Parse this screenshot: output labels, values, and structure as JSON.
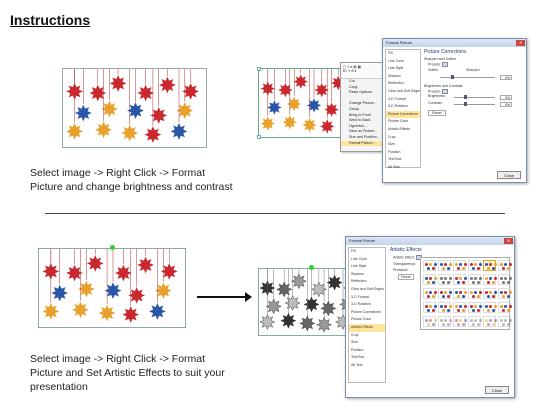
{
  "title": "Instructions",
  "step1": {
    "instruction_line1": "Select image -> Right Click -> Format",
    "instruction_line2": "Picture and change brightness and contrast"
  },
  "step2": {
    "instruction_line1": "Select image -> Right Click -> Format",
    "instruction_line2": "Picture and Set Artistic Effects to suit your",
    "instruction_line3": "presentation"
  },
  "colors": {
    "red": "#c8282e",
    "blue": "#2a56a8",
    "orange": "#e8a12c",
    "gray": "#555555"
  },
  "context_menu": {
    "items": [
      "Cut",
      "Copy",
      "Paste Options:",
      "",
      "Change Picture...",
      "Group",
      "Bring to Front",
      "Send to Back",
      "Hyperlink...",
      "Save as Picture...",
      "Size and Position...",
      "Format Picture..."
    ],
    "highlighted": "Format Picture..."
  },
  "dialog1": {
    "title": "Format Picture",
    "sidebar": [
      "Fill",
      "Line Color",
      "Line Style",
      "Shadow",
      "Reflection",
      "Glow and Soft Edges",
      "3-D Format",
      "3-D Rotation",
      "Picture Corrections",
      "Picture Color",
      "Artistic Effects",
      "Crop",
      "Size",
      "Position",
      "Text Box",
      "Alt Text"
    ],
    "selected": "Picture Corrections",
    "section_title": "Picture Corrections",
    "sharpen_soften": "Sharpen and Soften",
    "presets": "Presets:",
    "soften": "Soften",
    "sharpen": "Sharpen",
    "soften_val": "0%",
    "brightness_contrast": "Brightness and Contrast",
    "presets2": "Presets:",
    "brightness": "Brightness:",
    "brightness_val": "0%",
    "contrast": "Contrast:",
    "contrast_val": "0%",
    "reset": "Reset",
    "close": "Close"
  },
  "dialog2": {
    "title": "Format Picture",
    "sidebar": [
      "Fill",
      "Line Color",
      "Line Style",
      "Shadow",
      "Reflection",
      "Glow and Soft Edges",
      "3-D Format",
      "3-D Rotation",
      "Picture Corrections",
      "Picture Color",
      "Artistic Effects",
      "Crop",
      "Size",
      "Position",
      "Text Box",
      "Alt Text"
    ],
    "selected": "Artistic Effects",
    "section_title": "Artistic Effects",
    "artistic_effect": "Artistic Effect:",
    "transparency": "Transparency:",
    "pressure": "Pressure:",
    "reset": "Reset",
    "close": "Close"
  }
}
